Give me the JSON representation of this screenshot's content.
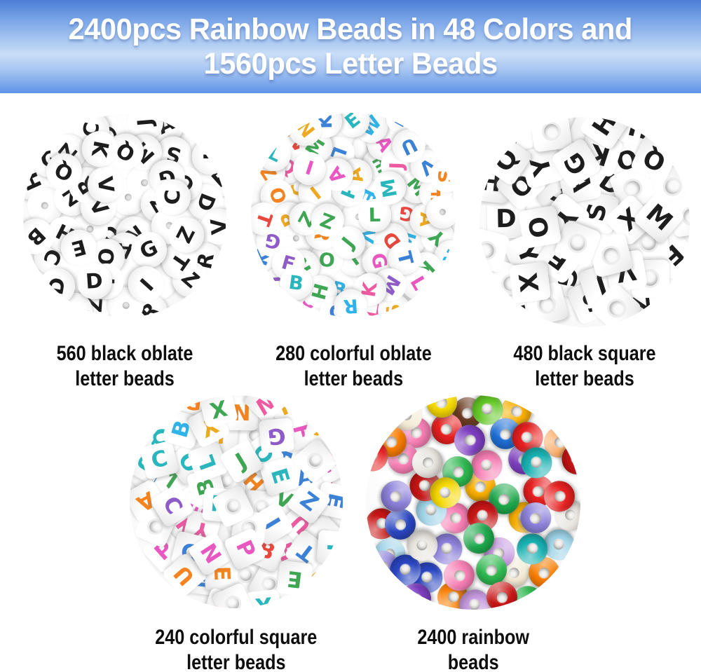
{
  "header": {
    "title_line1": "2400pcs Rainbow Beads in 48 Colors and",
    "title_line2": "1560pcs Letter Beads",
    "gradient_top": "#4a7dd5",
    "gradient_middle": "#c9def7",
    "gradient_bottom": "#5f93e8",
    "text_color": "#ffffff"
  },
  "products": [
    {
      "name": "black oblate letter beads",
      "count": 560,
      "caption_line1": "560 black oblate",
      "caption_line2": "letter beads",
      "bead_shape": "oblate-round",
      "letter_style": "black"
    },
    {
      "name": "colorful oblate letter beads",
      "count": 280,
      "caption_line1": "280 colorful oblate",
      "caption_line2": "letter beads",
      "bead_shape": "oblate-round",
      "letter_style": "colorful"
    },
    {
      "name": "black square letter beads",
      "count": 480,
      "caption_line1": "480 black square",
      "caption_line2": "letter beads",
      "bead_shape": "square-cube",
      "letter_style": "black"
    },
    {
      "name": "colorful square letter beads",
      "count": 240,
      "caption_line1": "240 colorful square",
      "caption_line2": "letter beads",
      "bead_shape": "square-cube",
      "letter_style": "colorful"
    },
    {
      "name": "rainbow beads",
      "count": 2400,
      "caption_line1": "2400 rainbow",
      "caption_line2": "beads",
      "bead_shape": "pony",
      "letter_style": "none"
    }
  ],
  "palette": {
    "letters": "ABCDEFGHIJKLMNOPQRSTUVWXYZ",
    "black_letter": "#1d1d1d",
    "colorful_letters": [
      "#29b6bc",
      "#f5831f",
      "#ee5aa0",
      "#3fa654",
      "#8e5bc8",
      "#e8483d",
      "#3b82d6",
      "#eda921",
      "#e858c0",
      "#2fb3e8"
    ],
    "pony_beads": [
      "#f6d900",
      "#f9b000",
      "#f97d00",
      "#e82020",
      "#c81616",
      "#ee2d7d",
      "#f77fb4",
      "#c79ae0",
      "#7d3fc1",
      "#8c7fd9",
      "#2a46c2",
      "#1f6fd6",
      "#19b2b2",
      "#9fd4e8",
      "#1ea84b",
      "#64c926",
      "#2eb84f",
      "#ffffff",
      "#f3ead4",
      "#6b3c22",
      "#e8e4de",
      "#f9a85f"
    ],
    "caption_text_color": "#0e0e0e"
  }
}
